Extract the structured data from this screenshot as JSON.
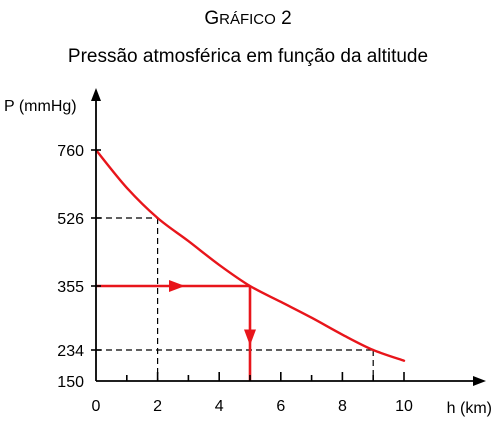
{
  "chart_data": {
    "type": "line",
    "kicker_first": "G",
    "kicker_rest": "RÁFICO",
    "kicker_num": "2",
    "title": "Pressão atmosférica em função da altitude",
    "xlabel": "h (km)",
    "ylabel": "P (mmHg)",
    "xlim": [
      0,
      11.5
    ],
    "ylim": [
      150,
      880
    ],
    "x_ticks": [
      0,
      2,
      4,
      6,
      8,
      10
    ],
    "x_tick_labels": [
      "0",
      "2",
      "4",
      "6",
      "8",
      "10"
    ],
    "y_ticks": [
      150,
      234,
      355,
      526,
      760
    ],
    "y_tick_labels": [
      "150",
      "234",
      "355",
      "526",
      "760"
    ],
    "series": [
      {
        "x": [
          0,
          1,
          2,
          3,
          4,
          5,
          6,
          7,
          8,
          9,
          10
        ],
        "y": [
          760,
          630,
          526,
          468,
          408,
          355,
          325,
          295,
          263,
          234,
          205
        ],
        "color": "#e8151b"
      }
    ],
    "guides": [
      {
        "x": 2,
        "y": 526
      },
      {
        "x": 5,
        "y": 355
      },
      {
        "x": 9,
        "y": 234
      }
    ],
    "annotation": {
      "x": 5,
      "y": 355,
      "color": "#e8151b"
    },
    "grid": false,
    "legend": "none"
  }
}
